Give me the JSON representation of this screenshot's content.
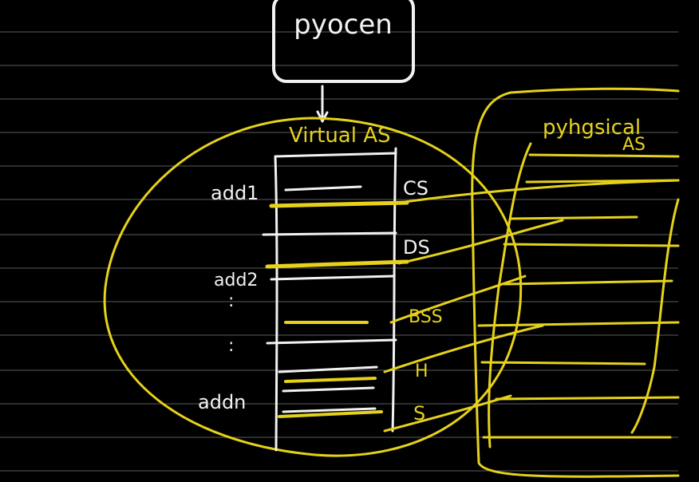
{
  "diagram": {
    "process_label": "pyocen",
    "virtual_as_label": "Virtual AS",
    "physical_as_label": "pyhgsical",
    "physical_as_label_line2": "AS",
    "address_labels": [
      "add1",
      "add2",
      ":",
      ":",
      "addn"
    ],
    "segment_labels": [
      "CS",
      "DS",
      "BSS",
      "H",
      "S"
    ],
    "colors": {
      "background": "#000000",
      "ruled_lines": "#5d5d5d",
      "ink_white": "#f2f2f2",
      "ink_yellow": "#e6d21a"
    }
  }
}
